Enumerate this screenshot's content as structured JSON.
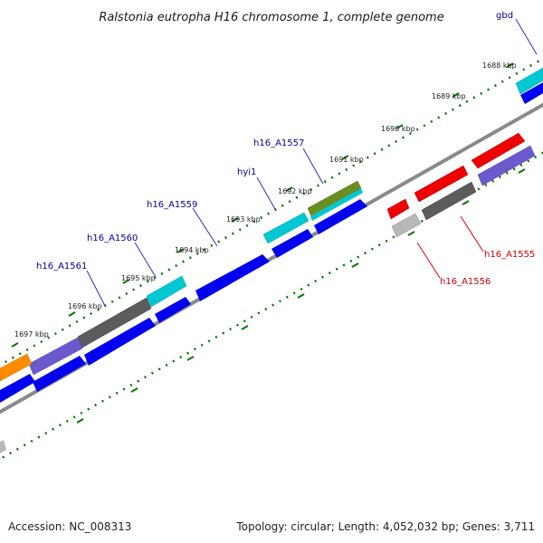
{
  "title": "Ralstonia eutropha H16 chromosome 1, complete genome",
  "accession": "Accession: NC_008313",
  "summary": "Topology: circular; Length: 4,052,032 bp; Genes: 3,711",
  "colors": {
    "forward_cds": "#0000ee",
    "reverse_cds_label": "#dd0000",
    "label_link_forward": "#2233cc",
    "tick": "#007700",
    "backbone": "#8a8a8a",
    "cyan": "#00c8d2",
    "gray": "#5c5c5c",
    "purple": "#6a5acd",
    "orange": "#ff8c00",
    "red": "#ee0000",
    "olive": "#6b8e23",
    "lightgray": "#b8b8b8"
  },
  "kbp_labels": [
    "1688 kbp",
    "1689 kbp",
    "1690 kbp",
    "1691 kbp",
    "1692 kbp",
    "1693 kbp",
    "1694 kbp",
    "1695 kbp",
    "1696 kbp",
    "1697 kbp"
  ],
  "gene_labels": {
    "gbd": "gbd",
    "h16_A1557": "h16_A1557",
    "hyi1": "hyi1",
    "h16_A1559": "h16_A1559",
    "h16_A1560": "h16_A1560",
    "h16_A1561": "h16_A1561",
    "h16_A1555": "h16_A1555",
    "h16_A1556": "h16_A1556"
  }
}
